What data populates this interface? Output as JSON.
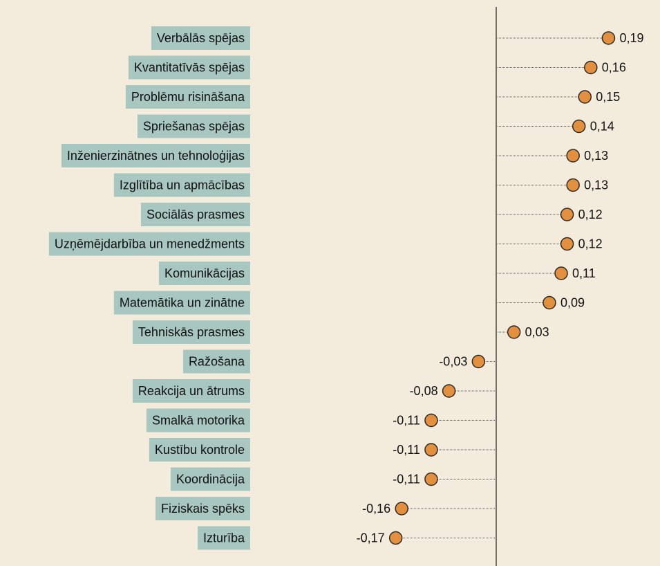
{
  "chart_data": {
    "type": "lollipop",
    "categories": [
      "Verbālās spējas",
      "Kvantitatīvās spējas",
      "Problēmu risināšana",
      "Spriešanas spējas",
      "Inženierzinātnes un tehnoloģijas",
      "Izglītība un apmācības",
      "Sociālās prasmes",
      "Uzņēmējdarbība un menedžments",
      "Komunikācijas",
      "Matemātika un zinātne",
      "Tehniskās prasmes",
      "Ražošana",
      "Reakcija un ātrums",
      "Smalkā motorika",
      "Kustību kontrole",
      "Koordinācija",
      "Fiziskais spēks",
      "Izturība"
    ],
    "values": [
      0.19,
      0.16,
      0.15,
      0.14,
      0.13,
      0.13,
      0.12,
      0.12,
      0.11,
      0.09,
      0.03,
      -0.03,
      -0.08,
      -0.11,
      -0.11,
      -0.11,
      -0.16,
      -0.17
    ],
    "value_labels": [
      "0,19",
      "0,16",
      "0,15",
      "0,14",
      "0,13",
      "0,13",
      "0,12",
      "0,12",
      "0,11",
      "0,09",
      "0,03",
      "-0,03",
      "-0,08",
      "-0,11",
      "-0,11",
      "-0,11",
      "-0,16",
      "-0,17"
    ],
    "color": "#e3903e",
    "label_box_color": "#a8c7c0"
  }
}
